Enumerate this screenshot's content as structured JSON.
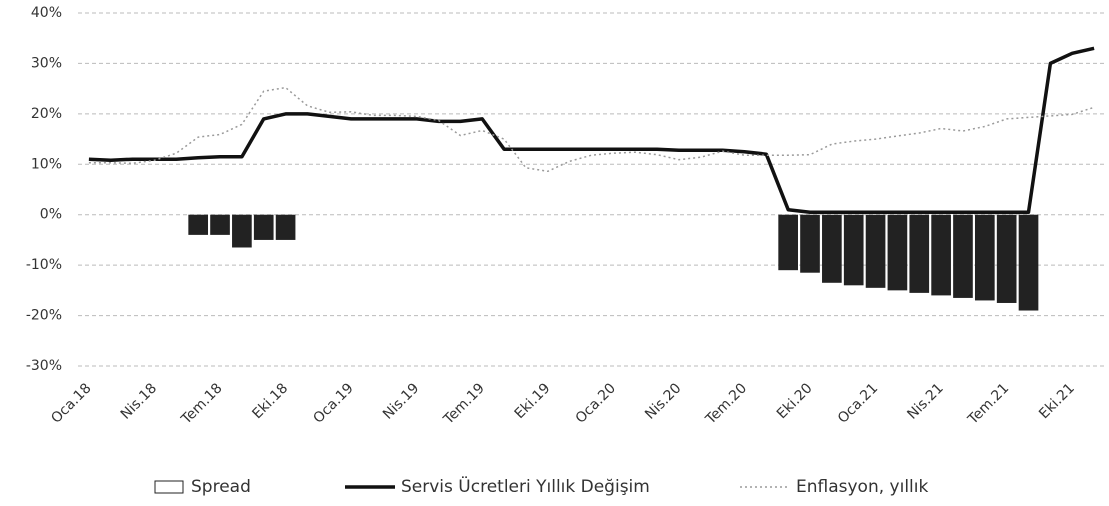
{
  "chart_data": {
    "type": "combo",
    "categories": [
      "Oca.18",
      null,
      null,
      "Nis.18",
      null,
      null,
      "Tem.18",
      null,
      null,
      "Eki.18",
      null,
      null,
      "Oca.19",
      null,
      null,
      "Nis.19",
      null,
      null,
      "Tem.19",
      null,
      null,
      "Eki.19",
      null,
      null,
      "Oca.20",
      null,
      null,
      "Nis.20",
      null,
      null,
      "Tem.20",
      null,
      null,
      "Eki.20",
      null,
      null,
      "Oca.21",
      null,
      null,
      "Nis.21",
      null,
      null,
      "Tem.21",
      null,
      null,
      "Eki.21",
      null
    ],
    "series": [
      {
        "name": "Spread",
        "type": "bar",
        "color": "#222222",
        "values": [
          null,
          null,
          null,
          null,
          null,
          -4,
          -4,
          -6.5,
          -5,
          -5,
          null,
          null,
          null,
          null,
          null,
          null,
          null,
          null,
          null,
          null,
          null,
          null,
          null,
          null,
          null,
          null,
          null,
          null,
          null,
          null,
          null,
          null,
          -11,
          -11.5,
          -13.5,
          -14,
          -14.5,
          -15,
          -15.5,
          -16,
          -16.5,
          -17,
          -17.5,
          -19,
          null,
          null,
          null
        ]
      },
      {
        "name": "Servis Ücretleri Yıllık Değişim",
        "type": "line",
        "color": "#111111",
        "values": [
          11,
          10.8,
          11,
          11,
          11,
          11.3,
          11.5,
          11.5,
          19,
          20,
          20,
          19.5,
          19,
          19,
          19,
          19,
          18.5,
          18.5,
          19,
          13,
          13,
          13,
          13,
          13,
          13,
          13,
          13,
          12.8,
          12.8,
          12.8,
          12.5,
          12,
          1,
          0.5,
          0.5,
          0.5,
          0.5,
          0.5,
          0.5,
          0.5,
          0.5,
          0.5,
          0.5,
          0.5,
          30,
          32,
          33
        ]
      },
      {
        "name": "Enflasyon, yıllık",
        "type": "line",
        "dashed": true,
        "color": "#9a9a9a",
        "values": [
          10.3,
          10.3,
          10.2,
          10.8,
          12.2,
          15.4,
          15.9,
          17.9,
          24.5,
          25.2,
          21.6,
          20.3,
          20.4,
          19.7,
          19.7,
          19.5,
          18.7,
          15.7,
          16.7,
          15,
          9.3,
          8.6,
          10.6,
          11.8,
          12.2,
          12.4,
          11.9,
          10.9,
          11.4,
          12.6,
          11.8,
          11.8,
          11.8,
          11.9,
          14,
          14.6,
          15,
          15.6,
          16.2,
          17.1,
          16.6,
          17.5,
          19,
          19.3,
          19.6,
          19.9,
          21.3
        ]
      }
    ],
    "ylim": [
      -30,
      40
    ],
    "yticks": [
      {
        "value": 40,
        "label": "40%"
      },
      {
        "value": 30,
        "label": "30%"
      },
      {
        "value": 20,
        "label": "20%"
      },
      {
        "value": 10,
        "label": "10%"
      },
      {
        "value": 0,
        "label": "0%"
      },
      {
        "value": -10,
        "label": "-10%"
      },
      {
        "value": -20,
        "label": "-20%"
      },
      {
        "value": -30,
        "label": "-30%"
      }
    ],
    "grid": true,
    "legend": "bottom"
  }
}
